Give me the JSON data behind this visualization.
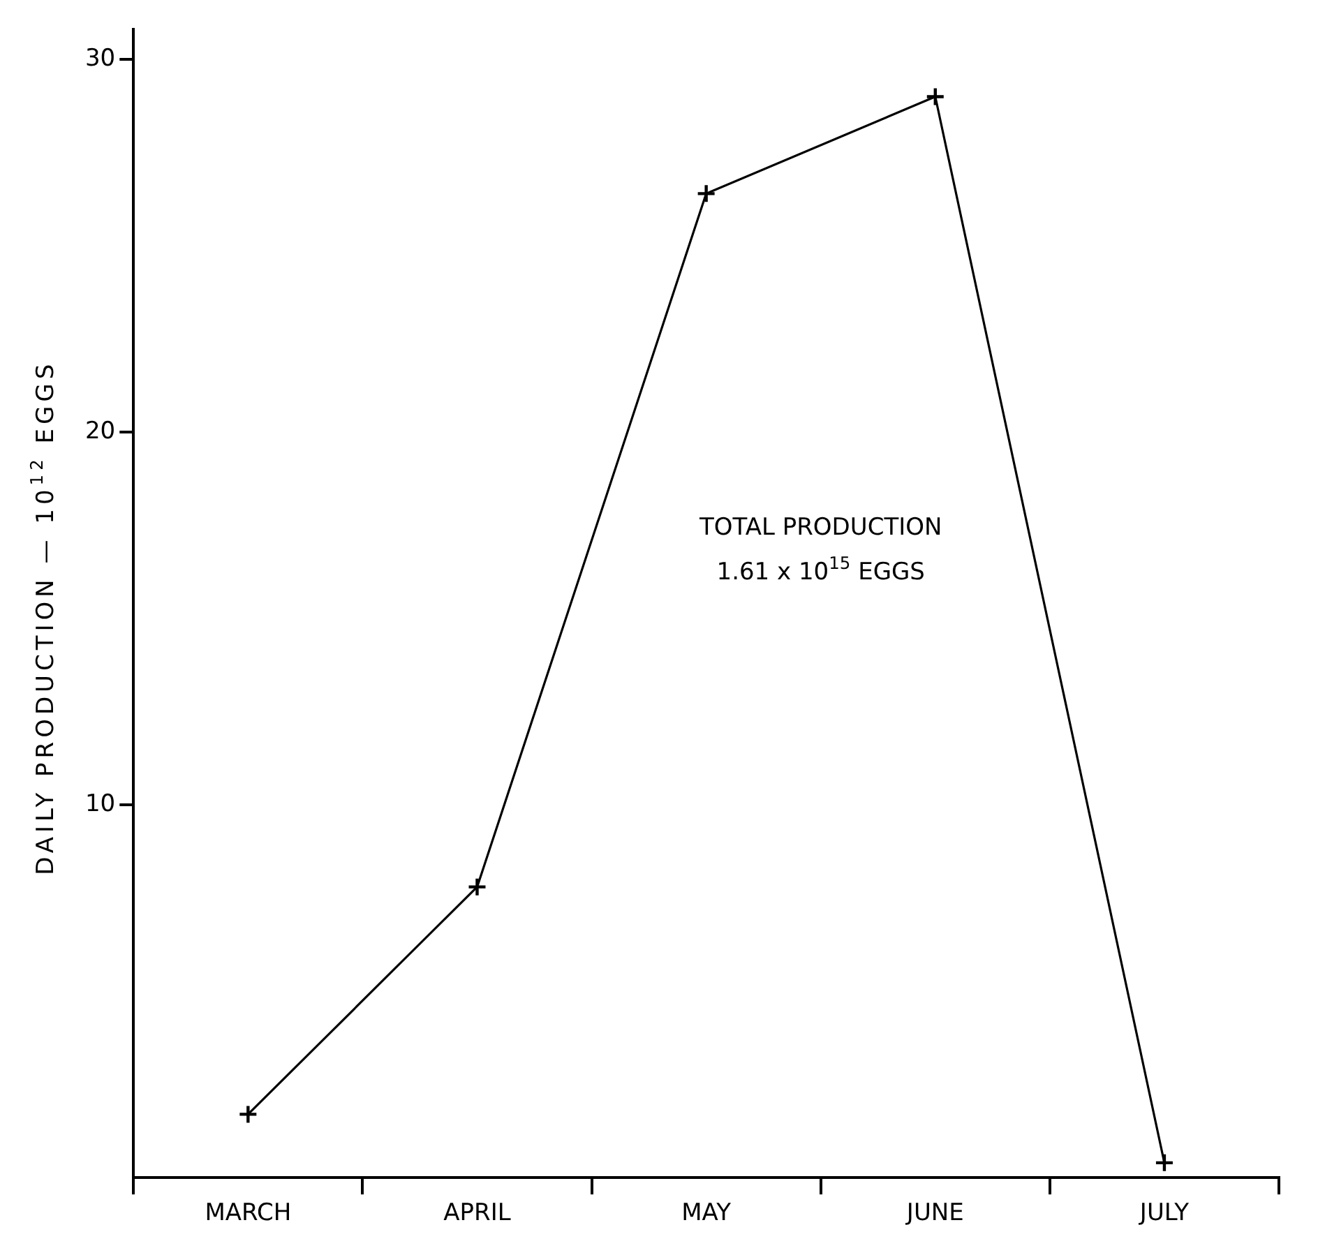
{
  "chart_data": {
    "type": "line",
    "ylabel": "DAILY PRODUCTION — 10$^{12}$ EGGS",
    "annotations": [
      "TOTAL PRODUCTION",
      "1.61 x 10$^{15}$ EGGS"
    ],
    "categories": [
      "MARCH",
      "APRIL",
      "MAY",
      "JUNE",
      "JULY"
    ],
    "ylim": [
      0,
      30.8
    ],
    "yticks": [
      10,
      20,
      30
    ],
    "series": [
      {
        "color": "#000000",
        "values": [
          1.7,
          7.8,
          26.4,
          29.0,
          0.4
        ]
      }
    ],
    "marker": "cross",
    "line_style": "solid",
    "grid": false,
    "legend": false
  }
}
